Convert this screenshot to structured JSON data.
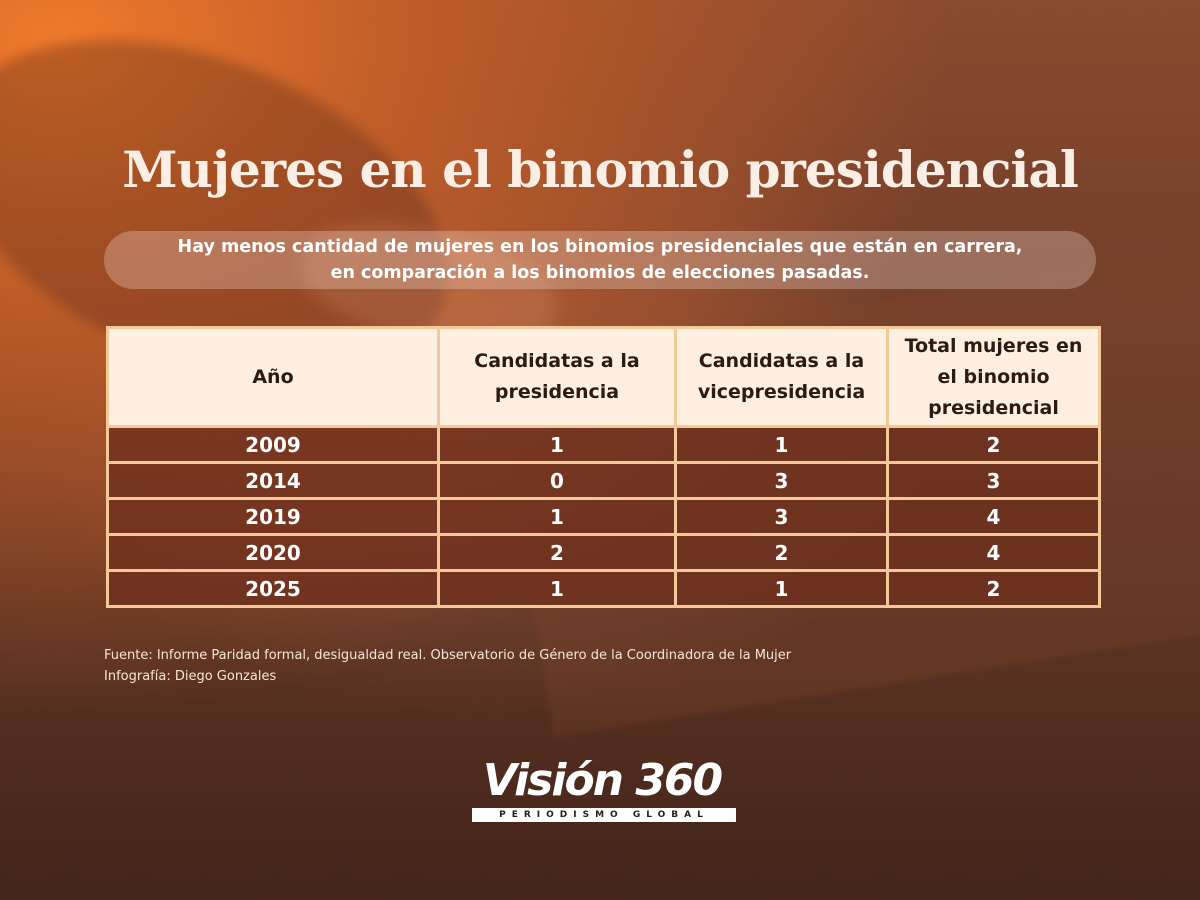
{
  "title": "Mujeres en el binomio presidencial",
  "subtitle": "Hay menos cantidad de mujeres en los binomios presidenciales que están en carrera,\nen comparación a los binomios de elecciones pasadas.",
  "table": {
    "headers": [
      "Año",
      "Candidatas a la\npresidencia",
      "Candidatas a la\nvicepresidencia",
      "Total mujeres en\nel binomio\npresidencial"
    ],
    "rows": [
      [
        "2009",
        "1",
        "1",
        "2"
      ],
      [
        "2014",
        "0",
        "3",
        "3"
      ],
      [
        "2019",
        "1",
        "3",
        "4"
      ],
      [
        "2020",
        "2",
        "2",
        "4"
      ],
      [
        "2025",
        "1",
        "1",
        "2"
      ]
    ]
  },
  "source": {
    "line1": "Fuente: Informe Paridad formal, desigualdad real. Observatorio de Género de la Coordinadora de la Mujer",
    "line2": "Infografía: Diego Gonzales"
  },
  "logo": {
    "name": "Visión 360",
    "tagline": "PERIODISMO GLOBAL"
  },
  "colors": {
    "header_bg": "#fdf0e0",
    "border": "#f3c99a",
    "row_bg": "#6e301e",
    "accent": "#f07a2a"
  }
}
